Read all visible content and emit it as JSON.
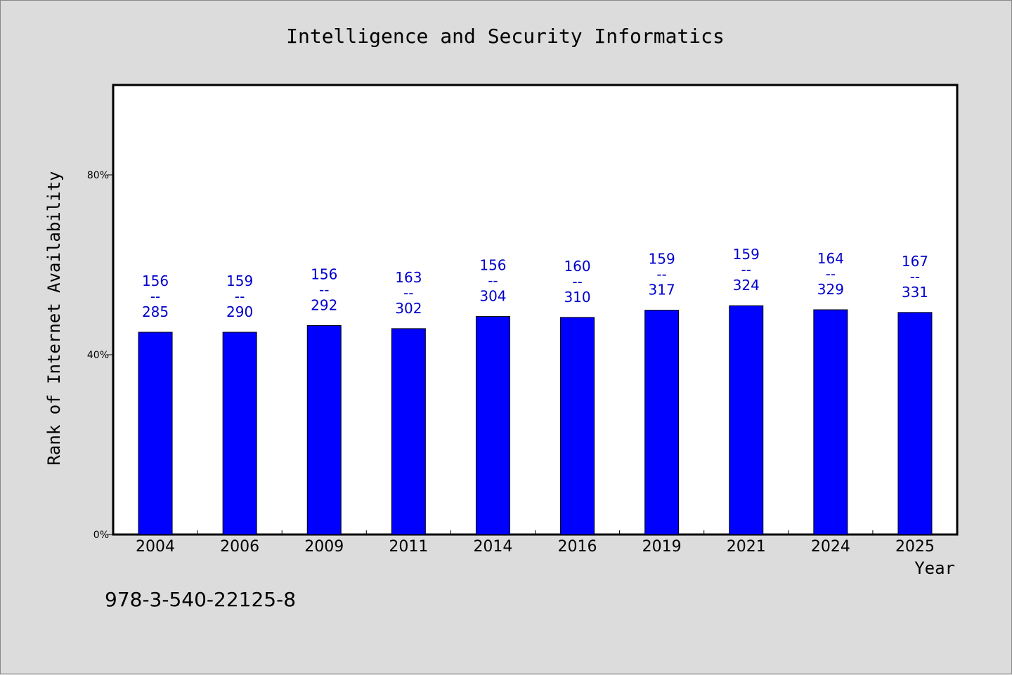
{
  "chart_data": {
    "type": "bar",
    "title": "Intelligence and Security Informatics",
    "xlabel": "Year",
    "ylabel": "Rank of Internet Availability",
    "ylim": [
      0,
      100
    ],
    "yticks": [
      {
        "value": 0,
        "label": "0%"
      },
      {
        "value": 40,
        "label": "40%"
      },
      {
        "value": 80,
        "label": "80%"
      }
    ],
    "grid": false,
    "bar_color": "#0000ff",
    "label_color": "#0000cc",
    "categories": [
      "2004",
      "2006",
      "2009",
      "2011",
      "2014",
      "2016",
      "2019",
      "2021",
      "2024",
      "2025"
    ],
    "values": [
      45.0,
      45.0,
      46.5,
      45.8,
      48.5,
      48.3,
      49.9,
      50.9,
      50.0,
      49.4
    ],
    "annotations": [
      {
        "top": "156",
        "sep": "--",
        "bottom": "285"
      },
      {
        "top": "159",
        "sep": "--",
        "bottom": "290"
      },
      {
        "top": "156",
        "sep": "--",
        "bottom": "292"
      },
      {
        "top": "163",
        "sep": "--",
        "bottom": "302"
      },
      {
        "top": "156",
        "sep": "--",
        "bottom": "304"
      },
      {
        "top": "160",
        "sep": "--",
        "bottom": "310"
      },
      {
        "top": "159",
        "sep": "--",
        "bottom": "317"
      },
      {
        "top": "159",
        "sep": "--",
        "bottom": "324"
      },
      {
        "top": "164",
        "sep": "--",
        "bottom": "329"
      },
      {
        "top": "167",
        "sep": "--",
        "bottom": "331"
      }
    ]
  },
  "footer": {
    "isbn": "978-3-540-22125-8"
  }
}
